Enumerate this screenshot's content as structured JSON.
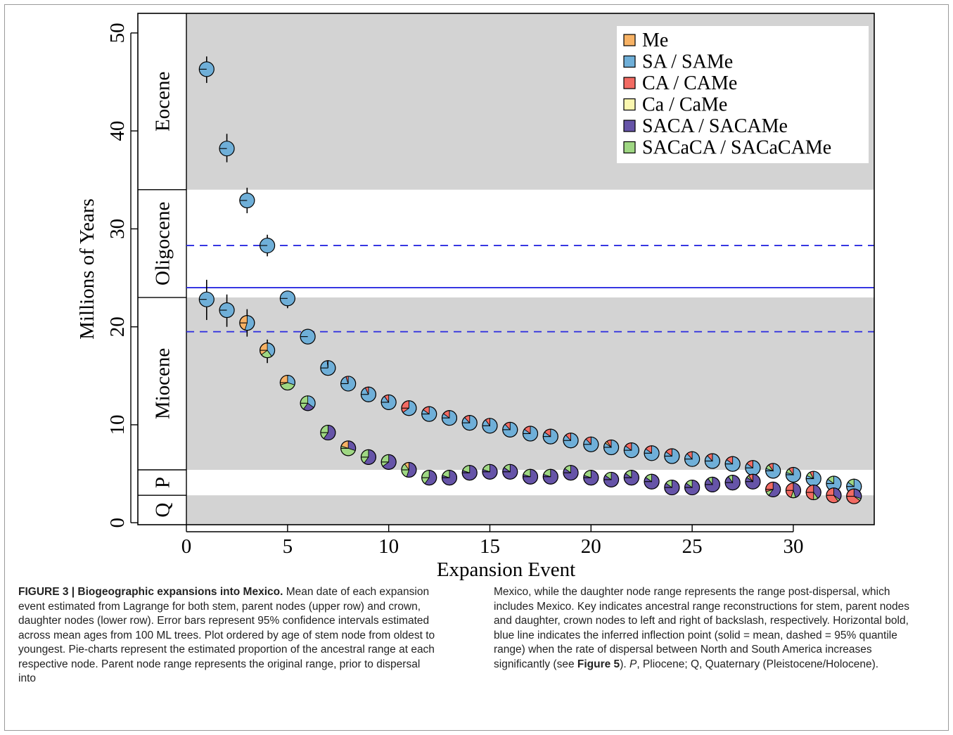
{
  "chart_data": {
    "type": "scatter",
    "xlabel": "Expansion Event",
    "ylabel": "Millions of Years",
    "xlim": [
      -2.4,
      34.0
    ],
    "ylim": [
      -0.2,
      52.0
    ],
    "x_ticks": [
      0,
      5,
      10,
      15,
      20,
      25,
      30
    ],
    "y_ticks": [
      0,
      10,
      20,
      30,
      40,
      50
    ],
    "epochs": [
      {
        "label": "Eocene",
        "from": 34.0,
        "to": 52.0,
        "shaded": true
      },
      {
        "label": "Oligocene",
        "from": 23.0,
        "to": 34.0,
        "shaded": false
      },
      {
        "label": "Miocene",
        "from": 5.4,
        "to": 23.0,
        "shaded": true
      },
      {
        "label": "P",
        "from": 2.8,
        "to": 5.4,
        "shaded": false
      },
      {
        "label": "Q",
        "from": -0.2,
        "to": 2.8,
        "shaded": true
      }
    ],
    "inflection": {
      "mean": 24.0,
      "lower": 19.5,
      "upper": 28.3
    },
    "legend": {
      "placement": "top-right",
      "entries": [
        {
          "label": "Me",
          "color": "#F7B265"
        },
        {
          "label": "SA / SAMe",
          "color": "#6FAFD8"
        },
        {
          "label": "CA / CAMe",
          "color": "#F26B63"
        },
        {
          "label": "Ca / CaMe",
          "color": "#FBF7B0"
        },
        {
          "label": "SACA / SACAMe",
          "color": "#6654A8"
        },
        {
          "label": "SACaCA / SACaCAMe",
          "color": "#9FD783"
        }
      ]
    },
    "series": [
      {
        "name": "stem, parent nodes (upper row)",
        "x": [
          1,
          2,
          3,
          4,
          5,
          6,
          7,
          8,
          9,
          10,
          11,
          12,
          13,
          14,
          15,
          16,
          17,
          18,
          19,
          20,
          21,
          22,
          23,
          24,
          25,
          26,
          27,
          28,
          29,
          30,
          31,
          32,
          33
        ],
        "y": [
          46.3,
          38.2,
          32.9,
          28.3,
          22.9,
          19.0,
          15.8,
          14.2,
          13.1,
          12.3,
          11.7,
          11.1,
          10.7,
          10.2,
          9.9,
          9.5,
          9.1,
          8.8,
          8.4,
          8.0,
          7.7,
          7.4,
          7.1,
          6.8,
          6.5,
          6.3,
          6.0,
          5.6,
          5.3,
          4.9,
          4.5,
          4.0,
          3.7
        ],
        "err": [
          [
            44.9,
            47.6
          ],
          [
            36.8,
            39.7
          ],
          [
            31.6,
            34.2
          ],
          [
            27.2,
            29.4
          ],
          [
            21.9,
            23.6
          ],
          [
            18.7,
            19.2
          ],
          [
            15.5,
            16.2
          ],
          [
            13.9,
            14.5
          ],
          [
            12.8,
            13.4
          ],
          [
            12.0,
            12.6
          ],
          [
            11.4,
            12.0
          ],
          [
            10.8,
            11.4
          ],
          [
            10.4,
            11.0
          ],
          [
            9.9,
            10.5
          ],
          [
            9.6,
            10.2
          ],
          [
            9.2,
            9.8
          ],
          [
            8.8,
            9.4
          ],
          [
            8.5,
            9.1
          ],
          [
            8.1,
            8.7
          ],
          [
            7.7,
            8.3
          ],
          [
            7.4,
            8.0
          ],
          [
            7.1,
            7.7
          ],
          [
            6.8,
            7.4
          ],
          [
            6.5,
            7.1
          ],
          [
            6.2,
            6.8
          ],
          [
            6.0,
            6.6
          ],
          [
            5.7,
            6.3
          ],
          [
            5.3,
            5.9
          ],
          [
            5.0,
            5.6
          ],
          [
            4.6,
            5.2
          ],
          [
            4.2,
            4.8
          ],
          [
            3.7,
            4.3
          ],
          [
            3.4,
            4.0
          ]
        ],
        "pies": [
          {
            "SA": 1.0
          },
          {
            "SA": 1.0
          },
          {
            "SA": 1.0
          },
          {
            "SA": 1.0
          },
          {
            "SA": 1.0
          },
          {
            "SA": 1.0
          },
          {
            "SA": 0.98,
            "CA": 0.02
          },
          {
            "SA": 0.95,
            "CA": 0.05
          },
          {
            "SA": 0.93,
            "CA": 0.07
          },
          {
            "SA": 0.9,
            "CA": 0.1
          },
          {
            "SA": 0.65,
            "CA": 0.35
          },
          {
            "SA": 0.85,
            "CA": 0.15
          },
          {
            "SA": 0.85,
            "CA": 0.15
          },
          {
            "SA": 0.88,
            "CA": 0.12
          },
          {
            "SA": 0.9,
            "CA": 0.1
          },
          {
            "SA": 0.88,
            "CA": 0.12
          },
          {
            "SA": 0.85,
            "CA": 0.15
          },
          {
            "SA": 0.85,
            "CA": 0.15
          },
          {
            "SA": 0.88,
            "CA": 0.12
          },
          {
            "SA": 0.88,
            "CA": 0.12
          },
          {
            "SA": 0.85,
            "CA": 0.1,
            "Me": 0.05
          },
          {
            "SA": 0.85,
            "CA": 0.15
          },
          {
            "SA": 0.85,
            "CA": 0.15
          },
          {
            "SA": 0.85,
            "CA": 0.15
          },
          {
            "SA": 0.88,
            "CA": 0.12
          },
          {
            "SA": 0.88,
            "CA": 0.12
          },
          {
            "SA": 0.85,
            "CA": 0.15
          },
          {
            "SA": 0.85,
            "CA": 0.15
          },
          {
            "SA": 0.8,
            "CA": 0.1,
            "SACaCA": 0.1
          },
          {
            "SA": 0.8,
            "CA": 0.1,
            "SACaCA": 0.1
          },
          {
            "SA": 0.82,
            "CA": 0.08,
            "SACaCA": 0.1
          },
          {
            "SA": 0.85,
            "SACaCA": 0.15
          },
          {
            "SA": 0.85,
            "SACaCA": 0.15
          }
        ]
      },
      {
        "name": "crown, daughter nodes (lower row)",
        "x": [
          1,
          2,
          3,
          4,
          5,
          6,
          7,
          8,
          9,
          10,
          11,
          12,
          13,
          14,
          15,
          16,
          17,
          18,
          19,
          20,
          21,
          22,
          23,
          24,
          25,
          26,
          27,
          28,
          29,
          30,
          31,
          32,
          33
        ],
        "y": [
          22.8,
          21.7,
          20.4,
          17.6,
          14.3,
          12.2,
          9.2,
          7.6,
          6.7,
          6.2,
          5.4,
          4.6,
          4.6,
          5.1,
          5.2,
          5.2,
          4.7,
          4.7,
          5.1,
          4.6,
          4.4,
          4.6,
          4.2,
          3.6,
          3.6,
          3.9,
          4.1,
          4.2,
          3.4,
          3.3,
          3.1,
          2.8,
          2.7
        ],
        "err": [
          [
            20.7,
            24.8
          ],
          [
            20.0,
            23.3
          ],
          [
            19.0,
            21.8
          ],
          [
            16.3,
            18.7
          ],
          [
            13.6,
            15.0
          ],
          [
            11.5,
            12.9
          ],
          [
            8.5,
            9.9
          ],
          [
            6.9,
            8.3
          ],
          [
            6.0,
            7.4
          ],
          [
            5.5,
            6.9
          ],
          [
            4.7,
            6.1
          ],
          [
            3.9,
            5.3
          ],
          [
            3.9,
            5.3
          ],
          [
            4.4,
            5.8
          ],
          [
            4.5,
            5.9
          ],
          [
            4.5,
            5.9
          ],
          [
            4.0,
            5.4
          ],
          [
            4.0,
            5.4
          ],
          [
            4.4,
            5.8
          ],
          [
            3.9,
            5.3
          ],
          [
            3.7,
            5.1
          ],
          [
            3.9,
            5.3
          ],
          [
            3.5,
            4.9
          ],
          [
            2.9,
            4.3
          ],
          [
            2.9,
            4.3
          ],
          [
            3.2,
            4.6
          ],
          [
            3.4,
            4.8
          ],
          [
            3.5,
            4.9
          ],
          [
            2.7,
            4.1
          ],
          [
            2.6,
            4.0
          ],
          [
            2.4,
            3.8
          ],
          [
            2.1,
            3.5
          ],
          [
            2.0,
            3.4
          ]
        ],
        "pies": [
          {
            "SA": 1.0
          },
          {
            "SA": 1.0
          },
          {
            "SA": 0.55,
            "Me": 0.45
          },
          {
            "SA": 0.4,
            "Me": 0.35,
            "SACaCA": 0.25
          },
          {
            "SA": 0.3,
            "Me": 0.3,
            "SACaCA": 0.4
          },
          {
            "SA": 0.35,
            "SACA": 0.25,
            "SACaCA": 0.4
          },
          {
            "SACA": 0.6,
            "SACaCA": 0.4
          },
          {
            "SACA": 0.3,
            "Me": 0.2,
            "SACaCA": 0.5
          },
          {
            "SACA": 0.6,
            "SACaCA": 0.4
          },
          {
            "SACA": 0.65,
            "SACaCA": 0.35
          },
          {
            "SACA": 0.55,
            "Me": 0.1,
            "SACaCA": 0.35
          },
          {
            "SACA": 0.6,
            "SACaCA": 0.4
          },
          {
            "SACA": 0.8,
            "SACaCA": 0.2
          },
          {
            "SACA": 0.8,
            "SACaCA": 0.2
          },
          {
            "SACA": 0.8,
            "SACaCA": 0.2
          },
          {
            "SACA": 0.85,
            "SACaCA": 0.15
          },
          {
            "SACA": 0.8,
            "SACaCA": 0.2
          },
          {
            "SACA": 0.8,
            "SACaCA": 0.2
          },
          {
            "SACA": 0.85,
            "SACaCA": 0.15
          },
          {
            "SACA": 0.8,
            "SACaCA": 0.2
          },
          {
            "SACA": 0.85,
            "SACaCA": 0.15
          },
          {
            "SACA": 0.85,
            "SACaCA": 0.15
          },
          {
            "SACA": 0.85,
            "SACaCA": 0.15
          },
          {
            "SACA": 0.85,
            "SACaCA": 0.15
          },
          {
            "SACA": 0.85,
            "SACaCA": 0.15
          },
          {
            "SACA": 0.9,
            "SACaCA": 0.1
          },
          {
            "SACA": 0.9,
            "SACaCA": 0.1
          },
          {
            "SACA": 0.85,
            "CA": 0.1,
            "SACaCA": 0.05
          },
          {
            "SACA": 0.6,
            "CA": 0.3,
            "SACaCA": 0.1
          },
          {
            "SACA": 0.45,
            "CA": 0.45,
            "SACaCA": 0.1
          },
          {
            "SACA": 0.4,
            "CA": 0.5,
            "SACaCA": 0.1
          },
          {
            "SACA": 0.35,
            "CA": 0.6,
            "SACaCA": 0.05
          },
          {
            "SACA": 0.3,
            "CA": 0.65,
            "SACaCA": 0.05
          }
        ]
      }
    ]
  },
  "caption": {
    "figure_label": "FIGURE 3 | Biogeographic expansions into Mexico.",
    "left_text": " Mean date of each expansion event estimated from Lagrange for both stem, parent nodes (upper row) and crown, daughter nodes (lower row). Error bars represent 95% confidence intervals estimated across mean ages from 100 ML trees. Plot ordered by age of stem node from oldest to youngest. Pie-charts represent the estimated proportion of the ancestral range at each respective node. Parent node range represents the original range, prior to dispersal into",
    "right_text_1": "Mexico, while the daughter node range represents the range post-dispersal, which includes Mexico. Key indicates ancestral range reconstructions for stem, parent nodes and daughter, crown nodes to left and right of backslash, respectively. Horizontal bold, blue line indicates the inferred inflection point (solid = mean, dashed = 95% quantile range) when the rate of dispersal between North and South America increases significantly (see ",
    "right_ref": "Figure 5",
    "right_text_2": "). ",
    "right_p": "P",
    "right_text_3": ", Pliocene; Q, Quaternary (Pleistocene/Holocene)."
  },
  "colors": {
    "shade": "#d3d3d3",
    "inflection_line": "#2a2ae0",
    "Me": "#F7B265",
    "SA": "#6FAFD8",
    "CA": "#F26B63",
    "Ca": "#FBF7B0",
    "SACA": "#6654A8",
    "SACaCA": "#9FD783"
  }
}
